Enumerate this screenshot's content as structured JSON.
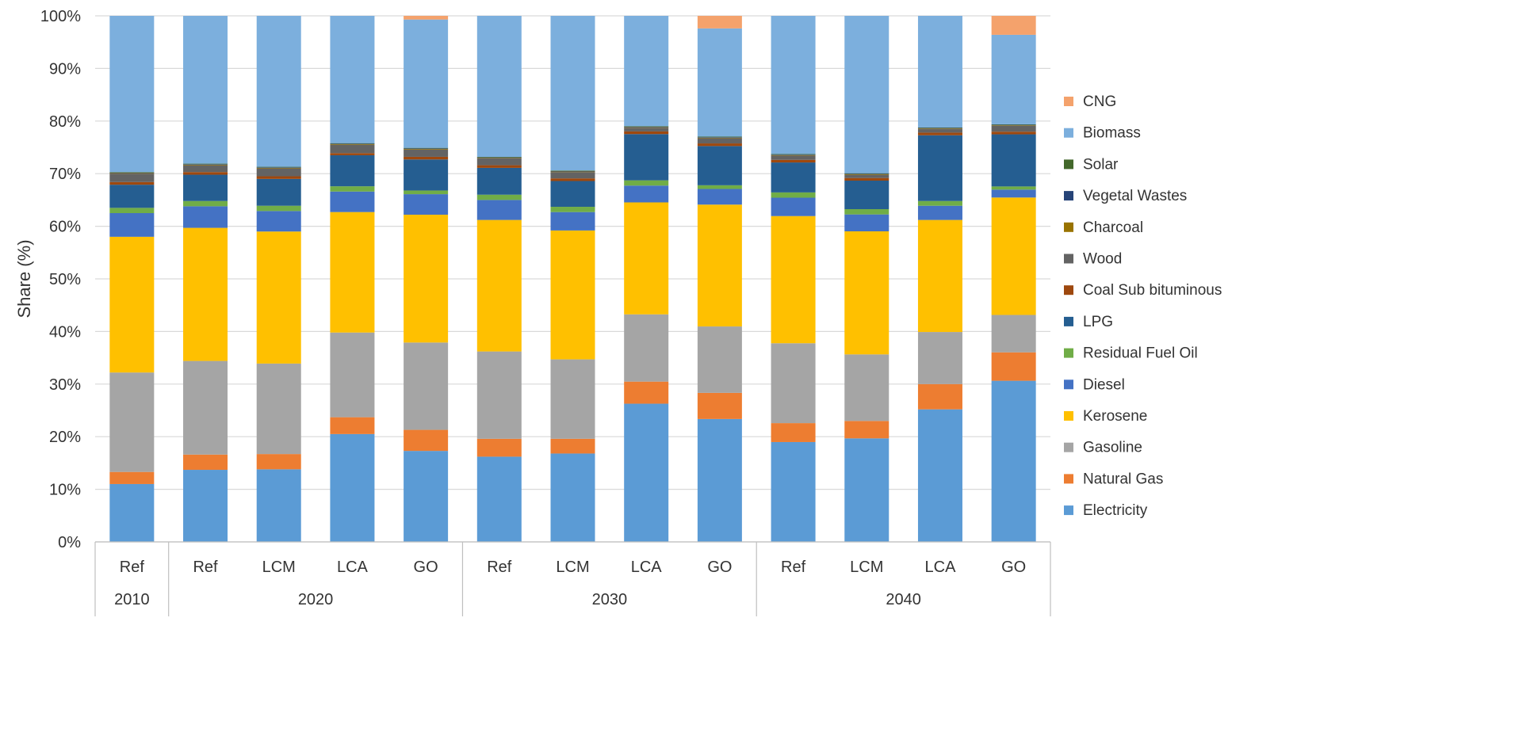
{
  "chart_data": {
    "type": "bar",
    "stacked": true,
    "percent_stacked": true,
    "title": "",
    "ylabel": "Share (%)",
    "xlabel": "",
    "ylim": [
      0,
      100
    ],
    "yticks": [
      "0%",
      "10%",
      "20%",
      "30%",
      "40%",
      "50%",
      "60%",
      "70%",
      "80%",
      "90%",
      "100%"
    ],
    "grid": "horizontal",
    "legend_position": "right",
    "categories": [
      "Ref",
      "Ref",
      "LCM",
      "LCA",
      "GO",
      "Ref",
      "LCM",
      "LCA",
      "GO",
      "Ref",
      "LCM",
      "LCA",
      "GO"
    ],
    "groups": [
      {
        "label": "2010",
        "count": 1
      },
      {
        "label": "2020",
        "count": 4
      },
      {
        "label": "2030",
        "count": 4
      },
      {
        "label": "2040",
        "count": 4
      }
    ],
    "series": [
      {
        "name": "Electricity",
        "color": "#5B9BD5",
        "values": [
          11,
          13.7,
          13.8,
          20.5,
          17.3,
          16.2,
          16.8,
          26.3,
          23.5,
          19,
          19.6,
          25.2,
          30.6
        ]
      },
      {
        "name": "Natural Gas",
        "color": "#ED7D31",
        "values": [
          2.3,
          2.9,
          2.9,
          3.2,
          4,
          3.4,
          2.8,
          4.2,
          5,
          3.6,
          3.3,
          4.8,
          5.4
        ]
      },
      {
        "name": "Gasoline",
        "color": "#A5A5A5",
        "values": [
          18.9,
          17.8,
          17.2,
          16.1,
          16.6,
          16.6,
          15.1,
          12.8,
          12.7,
          15.2,
          12.6,
          9.9,
          7.1
        ]
      },
      {
        "name": "Kerosene",
        "color": "#FFC000",
        "values": [
          25.8,
          25.3,
          25.1,
          22.9,
          24.3,
          25,
          24.5,
          21.3,
          23.3,
          24.2,
          23.3,
          21.3,
          22.3
        ]
      },
      {
        "name": "Diesel",
        "color": "#4472C4",
        "values": [
          4.5,
          4.1,
          3.9,
          3.9,
          3.9,
          3.8,
          3.5,
          3.2,
          3,
          3.5,
          3.2,
          2.7,
          1.5
        ]
      },
      {
        "name": "Residual Fuel Oil",
        "color": "#70AD47",
        "values": [
          1,
          1,
          1,
          1,
          0.7,
          1,
          1,
          1,
          0.7,
          1,
          1,
          0.9,
          0.6
        ]
      },
      {
        "name": "LPG",
        "color": "#255E91",
        "values": [
          4.4,
          5,
          5.1,
          5.9,
          5.9,
          5.1,
          4.9,
          8.8,
          7.5,
          5.7,
          5.4,
          12.5,
          9.9
        ]
      },
      {
        "name": "Coal Sub bituminous",
        "color": "#9E480E",
        "values": [
          0.5,
          0.5,
          0.5,
          0.4,
          0.5,
          0.5,
          0.5,
          0.5,
          0.5,
          0.5,
          0.5,
          0.5,
          0.5
        ]
      },
      {
        "name": "Wood",
        "color": "#636363",
        "values": [
          1.6,
          1.3,
          1.5,
          1.6,
          1.4,
          1.3,
          1.2,
          0.7,
          1,
          0.8,
          0.6,
          0.7,
          1.1
        ]
      },
      {
        "name": "Charcoal",
        "color": "#997300",
        "values": [
          0.1,
          0.1,
          0.1,
          0.1,
          0.1,
          0.1,
          0.1,
          0.1,
          0.1,
          0.1,
          0.1,
          0.1,
          0.1
        ]
      },
      {
        "name": "Vegetal Wastes",
        "color": "#264478",
        "values": [
          0.1,
          0.1,
          0.1,
          0.1,
          0.1,
          0.1,
          0.1,
          0.1,
          0.1,
          0.1,
          0.1,
          0.1,
          0.1
        ]
      },
      {
        "name": "Solar",
        "color": "#43682B",
        "values": [
          0.1,
          0.1,
          0.1,
          0.1,
          0.1,
          0.1,
          0.1,
          0.1,
          0.1,
          0.1,
          0.1,
          0.1,
          0.1
        ]
      },
      {
        "name": "Biomass",
        "color": "#7CAFDD",
        "values": [
          29.7,
          28.1,
          28.7,
          24.2,
          24.4,
          26.8,
          29.4,
          21.0,
          20.7,
          26.3,
          29.8,
          21.2,
          17.0
        ]
      },
      {
        "name": "CNG",
        "color": "#F4A26C",
        "values": [
          0,
          0,
          0,
          0,
          0.7,
          0,
          0,
          0,
          2.4,
          0,
          0,
          0,
          3.6
        ]
      }
    ]
  }
}
